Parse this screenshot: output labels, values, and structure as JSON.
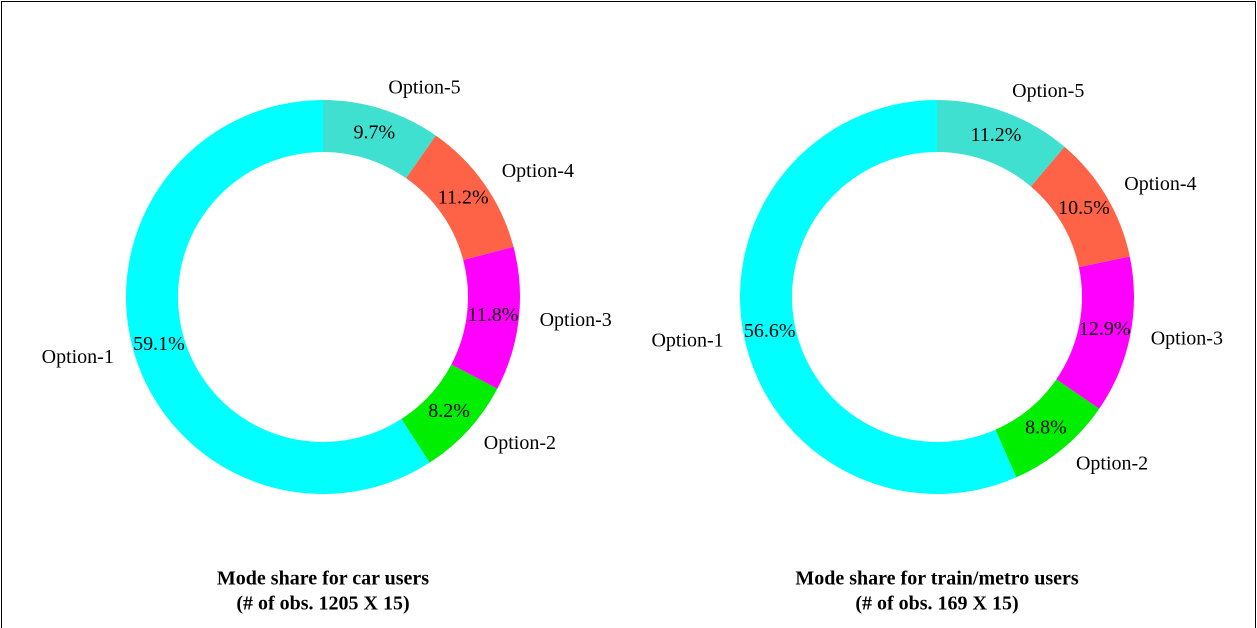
{
  "chart_data": [
    {
      "type": "donut",
      "title": "Mode share for car users",
      "subtitle": "(# of obs. 1205 X 15)",
      "categories": [
        "Option-1",
        "Option-2",
        "Option-3",
        "Option-4",
        "Option-5"
      ],
      "values": [
        59.1,
        8.2,
        11.8,
        11.2,
        9.7
      ],
      "value_labels": [
        "59.1%",
        "8.2%",
        "11.8%",
        "11.2%",
        "9.7%"
      ],
      "colors": [
        "#00ffff",
        "#00ee00",
        "#ff00ff",
        "#ff6347",
        "#40e0d0"
      ]
    },
    {
      "type": "donut",
      "title": "Mode share for train/metro users",
      "subtitle": "(# of obs. 169 X 15)",
      "categories": [
        "Option-1",
        "Option-2",
        "Option-3",
        "Option-4",
        "Option-5"
      ],
      "values": [
        56.6,
        8.8,
        12.9,
        10.5,
        11.2
      ],
      "value_labels": [
        "56.6%",
        "8.8%",
        "12.9%",
        "10.5%",
        "11.2%"
      ],
      "colors": [
        "#00ffff",
        "#00ee00",
        "#ff00ff",
        "#ff6347",
        "#40e0d0"
      ]
    }
  ]
}
